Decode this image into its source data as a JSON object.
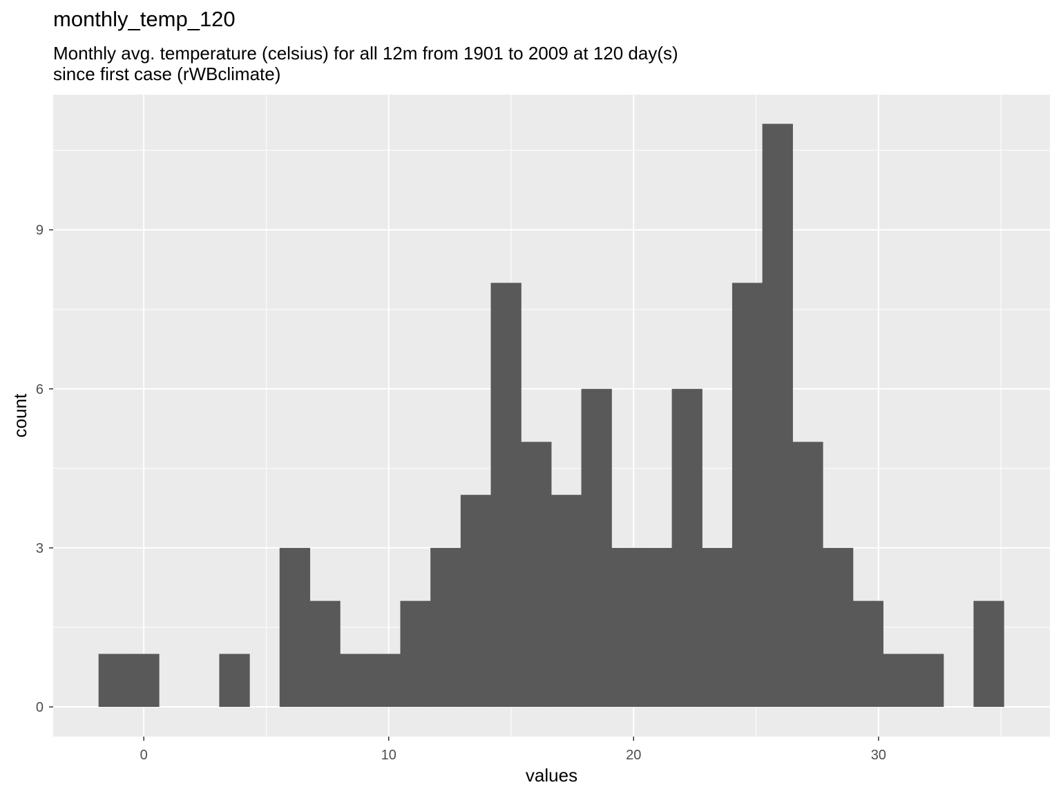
{
  "chart_data": {
    "type": "bar",
    "title": "monthly_temp_120",
    "subtitle_lines": [
      "Monthly avg. temperature (celsius) for all 12m from 1901 to 2009 at 120 day(s)",
      "since first case (rWBclimate)"
    ],
    "xlabel": "values",
    "ylabel": "count",
    "xlim": [
      -3.7,
      37.0
    ],
    "ylim": [
      -0.56,
      11.55
    ],
    "x_ticks": [
      0,
      10,
      20,
      30
    ],
    "x_tick_labels": [
      "0",
      "10",
      "20",
      "30"
    ],
    "y_ticks": [
      0,
      3,
      6,
      9
    ],
    "y_tick_labels": [
      "0",
      "3",
      "6",
      "9"
    ],
    "bin_width": 1.232,
    "bin_starts": [
      -1.848,
      -0.616,
      0.616,
      1.848,
      3.08,
      4.312,
      5.544,
      6.776,
      8.008,
      9.24,
      10.472,
      11.704,
      12.936,
      14.168,
      15.4,
      16.632,
      17.864,
      19.096,
      20.328,
      21.56,
      22.792,
      24.024,
      25.256,
      26.488,
      27.72,
      28.952,
      30.184,
      31.416,
      32.648,
      33.88
    ],
    "values": [
      1,
      1,
      0,
      0,
      1,
      0,
      3,
      2,
      1,
      1,
      2,
      3,
      4,
      8,
      5,
      4,
      6,
      3,
      3,
      6,
      3,
      8,
      11,
      5,
      3,
      2,
      1,
      1,
      0,
      2
    ],
    "bar_color": "#595959",
    "panel_background": "#ebebeb",
    "grid": true,
    "grid_color": "#ffffff",
    "legend": "none"
  }
}
